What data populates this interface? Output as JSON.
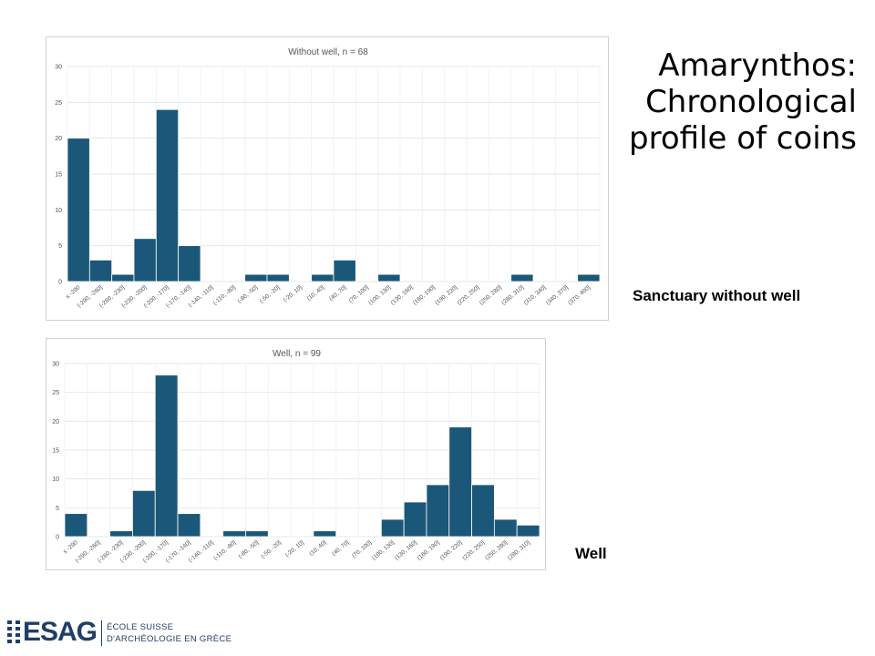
{
  "slide": {
    "title_lines": [
      "Amarynthos:",
      "Chronological",
      "profile of coins"
    ]
  },
  "captions": {
    "sanctuary": "Sanctuary without well",
    "well": "Well"
  },
  "logo": {
    "word": "ESAG",
    "line1": "ÉCOLE SUISSE",
    "line2": "D'ARCHÉOLOGIE EN GRÈCE"
  },
  "colors": {
    "bar": "#1b5778",
    "bar_edge": "#ffffff",
    "grid": "#e3e8ef",
    "text": "#555555",
    "logo": "#1f3f66"
  },
  "chart_data": [
    {
      "type": "bar",
      "title": "Without well, n = 68",
      "xlabel": "",
      "ylabel": "",
      "ylim": [
        0,
        30
      ],
      "yticks": [
        0,
        5,
        10,
        15,
        20,
        25,
        30
      ],
      "grid": true,
      "categories": [
        "≤ -290",
        "(-290, -260]",
        "(-260, -230]",
        "(-230, -200]",
        "(-200, -170]",
        "(-170, -140]",
        "(-140, -110]",
        "(-110, -80]",
        "(-80, -50]",
        "(-50, -20]",
        "(-20, 10]",
        "(10, 40]",
        "(40, 70]",
        "(70, 100]",
        "(100, 130]",
        "(130, 160]",
        "(160, 190]",
        "(190, 220]",
        "(220, 250]",
        "(250, 280]",
        "(280, 310]",
        "(310, 340]",
        "(340, 370]",
        "(370, 400]"
      ],
      "values": [
        20,
        3,
        1,
        6,
        24,
        5,
        0,
        0,
        1,
        1,
        0,
        1,
        3,
        0,
        1,
        0,
        0,
        0,
        0,
        0,
        1,
        0,
        0,
        1
      ]
    },
    {
      "type": "bar",
      "title": "Well, n = 99",
      "xlabel": "",
      "ylabel": "",
      "ylim": [
        0,
        30
      ],
      "yticks": [
        0,
        5,
        10,
        15,
        20,
        25,
        30
      ],
      "grid": true,
      "categories": [
        "≤ -290",
        "(-290, -260]",
        "(-260, -230]",
        "(-230, -200]",
        "(-200, -170]",
        "(-170, -140]",
        "(-140, -110]",
        "(-110, -80]",
        "(-80, -50]",
        "(-50, -20]",
        "(-20, 10]",
        "(10, 40]",
        "(40, 70]",
        "(70, 100]",
        "(100, 130]",
        "(130, 160]",
        "(160, 190]",
        "(190, 220]",
        "(220, 250]",
        "(250, 280]",
        "(280, 310]"
      ],
      "values": [
        4,
        0,
        1,
        8,
        28,
        4,
        0,
        1,
        1,
        0,
        0,
        1,
        0,
        0,
        3,
        6,
        9,
        19,
        9,
        3,
        2
      ]
    }
  ]
}
